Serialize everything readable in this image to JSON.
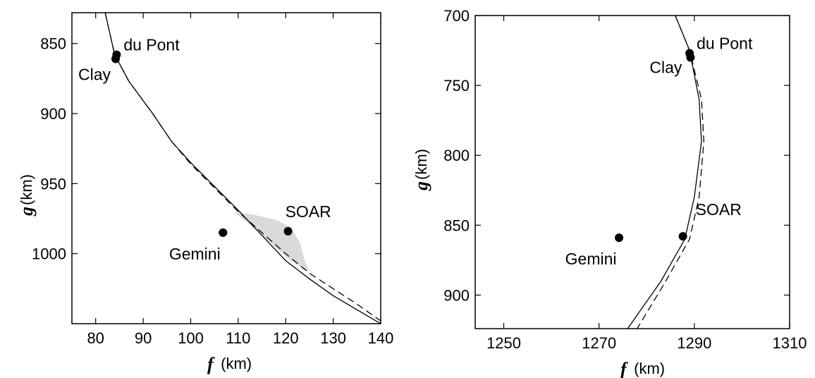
{
  "chart_data": [
    {
      "type": "line",
      "x_axis": {
        "var": "f",
        "unit": " (km)",
        "range": [
          75,
          140
        ],
        "ticks": [
          80,
          90,
          100,
          110,
          120,
          130,
          140
        ]
      },
      "y_axis": {
        "var": "g",
        "unit": "(km)",
        "range": [
          828,
          1050
        ],
        "inverted": true,
        "ticks": [
          850,
          900,
          950,
          1000
        ]
      },
      "series": [
        {
          "style": "solid",
          "points": [
            [
              82,
              828
            ],
            [
              84,
              858
            ],
            [
              87,
              877
            ],
            [
              92,
              900
            ],
            [
              96,
              920
            ],
            [
              100,
              935
            ],
            [
              105,
              952
            ],
            [
              110,
              969
            ],
            [
              115,
              987
            ],
            [
              120,
              1005
            ],
            [
              125,
              1018
            ],
            [
              130,
              1030
            ],
            [
              135,
              1040
            ],
            [
              140,
              1050
            ]
          ]
        },
        {
          "style": "dashed",
          "points": [
            [
              82,
              828
            ],
            [
              84,
              858
            ],
            [
              87,
              877
            ],
            [
              92,
              900
            ],
            [
              96,
              920
            ],
            [
              100,
              936
            ],
            [
              105,
              953
            ],
            [
              110,
              970
            ],
            [
              115,
              985
            ],
            [
              120,
              1000
            ],
            [
              125,
              1014
            ],
            [
              130,
              1025
            ],
            [
              135,
              1036
            ],
            [
              140,
              1048
            ]
          ]
        }
      ],
      "shaded_region": [
        [
          109,
          970
        ],
        [
          113,
          972
        ],
        [
          118,
          976
        ],
        [
          121,
          981
        ],
        [
          123,
          992
        ],
        [
          124,
          1005
        ],
        [
          125,
          1013
        ],
        [
          121,
          1005
        ],
        [
          116,
          990
        ],
        [
          112,
          978
        ],
        [
          109,
          970
        ]
      ],
      "points": [
        {
          "label": "du Pont",
          "x": 84.4,
          "y": 858,
          "xerr": 0,
          "label_pos": "right"
        },
        {
          "label": "Clay",
          "x": 84.2,
          "y": 861,
          "xerr": 0,
          "label_pos": "below-left"
        },
        {
          "label": "SOAR",
          "x": 120.5,
          "y": 984,
          "xerr": 0,
          "label_pos": "above"
        },
        {
          "label": "Gemini",
          "x": 106.8,
          "y": 985,
          "xerr": 0.9,
          "label_pos": "below"
        }
      ]
    },
    {
      "type": "line",
      "x_axis": {
        "var": "f",
        "unit": " (km)",
        "range": [
          1244,
          1310
        ],
        "ticks": [
          1250,
          1270,
          1290,
          1310
        ]
      },
      "y_axis": {
        "var": "g",
        "unit": "(km)",
        "range": [
          700,
          924
        ],
        "inverted": true,
        "ticks": [
          700,
          750,
          800,
          850,
          900
        ]
      },
      "series": [
        {
          "style": "solid",
          "points": [
            [
              1286,
              700
            ],
            [
              1289,
              725
            ],
            [
              1291,
              760
            ],
            [
              1291.5,
              790
            ],
            [
              1290,
              830
            ],
            [
              1288,
              860
            ],
            [
              1283,
              890
            ],
            [
              1276,
              924
            ]
          ]
        },
        {
          "style": "dashed",
          "points": [
            [
              1286,
              700
            ],
            [
              1289,
              725
            ],
            [
              1291.5,
              760
            ],
            [
              1292,
              790
            ],
            [
              1291,
              830
            ],
            [
              1289,
              860
            ],
            [
              1284,
              890
            ],
            [
              1278,
              924
            ]
          ]
        }
      ],
      "points": [
        {
          "label": "du Pont",
          "x": 1289,
          "y": 727,
          "xerr": 0,
          "label_pos": "right"
        },
        {
          "label": "Clay",
          "x": 1289.2,
          "y": 730,
          "xerr": 0,
          "label_pos": "left"
        },
        {
          "label": "SOAR",
          "x": 1287.6,
          "y": 858,
          "xerr": 0,
          "label_pos": "above-right"
        },
        {
          "label": "Gemini",
          "x": 1274.2,
          "y": 859,
          "xerr": 0.8,
          "label_pos": "below"
        }
      ]
    }
  ]
}
